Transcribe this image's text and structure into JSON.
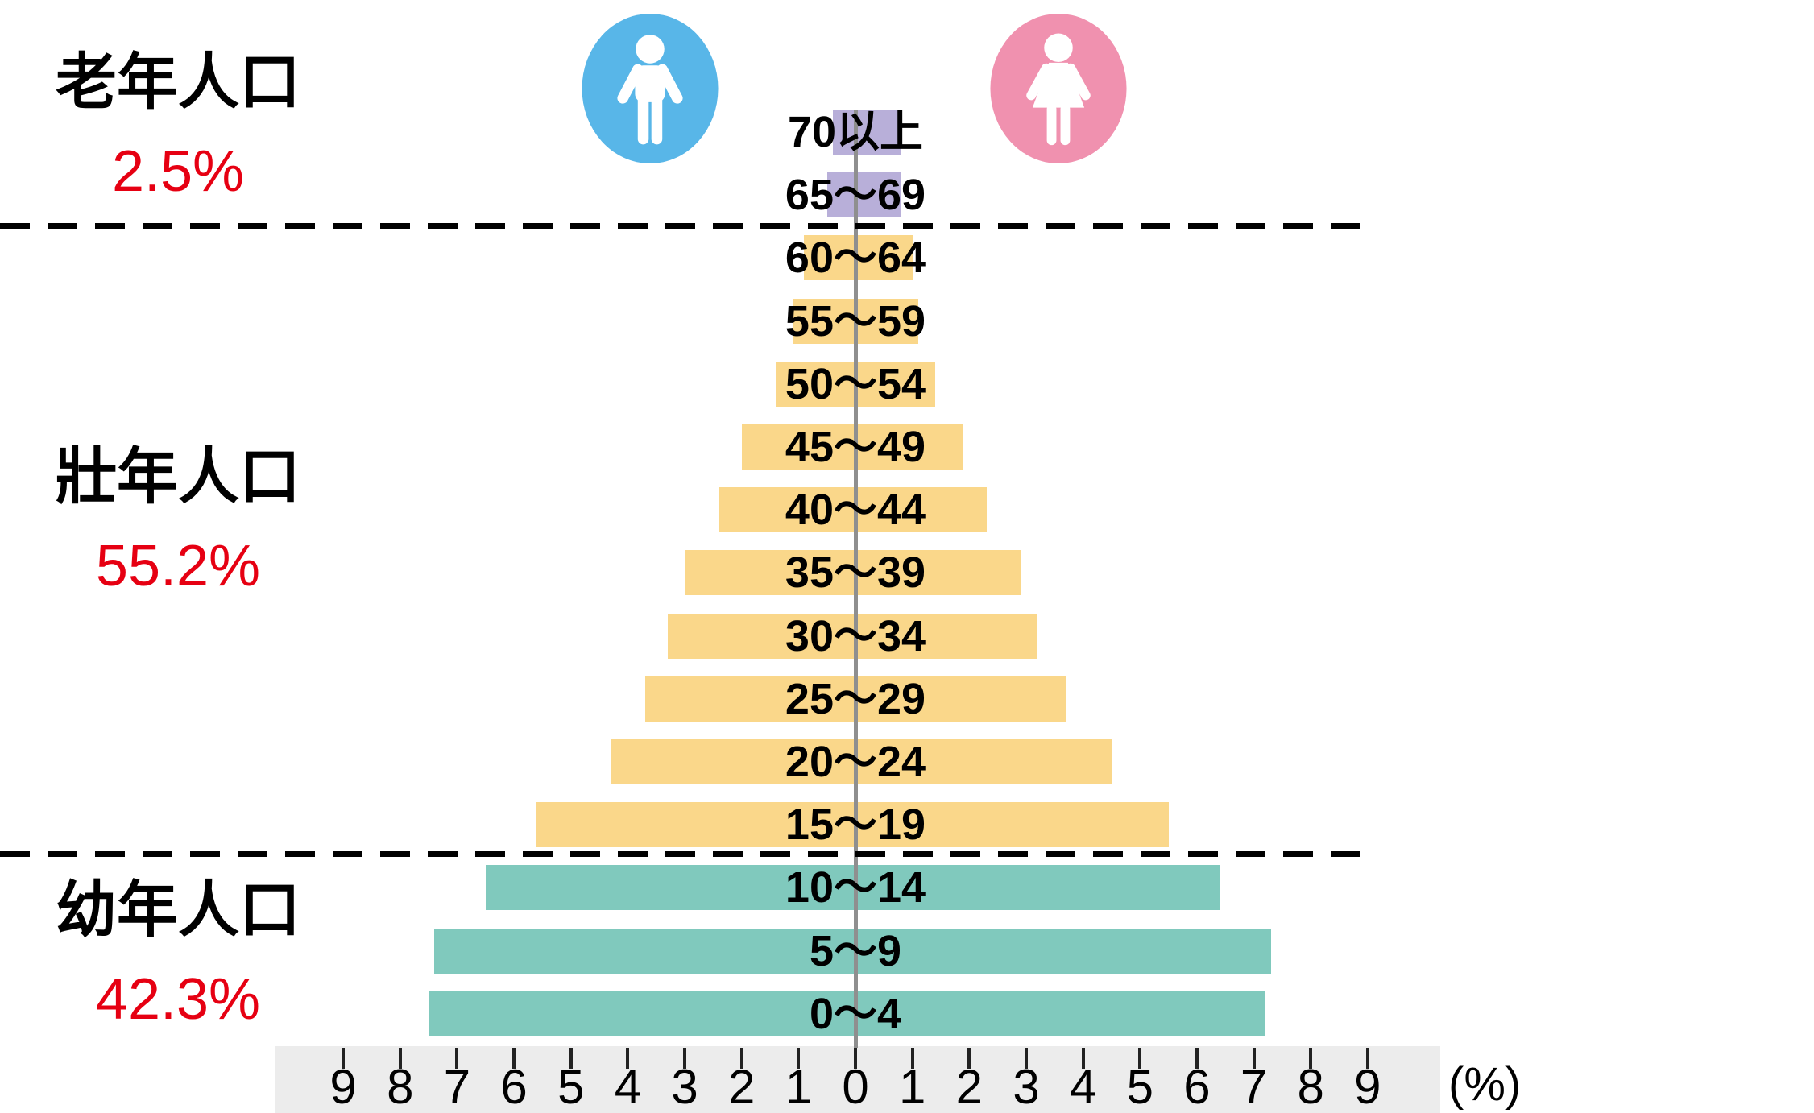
{
  "left_panel": {
    "groups": [
      {
        "name": "老年人口",
        "percent": "2.5%"
      },
      {
        "name": "壯年人口",
        "percent": "55.2%"
      },
      {
        "name": "幼年人口",
        "percent": "42.3%"
      }
    ]
  },
  "icons": {
    "male": "male-icon",
    "female": "female-icon"
  },
  "colors": {
    "elderly_bar": "#B8AFD9",
    "working_bar": "#FAD78A",
    "child_bar": "#80C9BD",
    "male_icon_bg": "#58B6E8",
    "female_icon_bg": "#F091AF",
    "percent_text": "#E60012",
    "axis_strip_bg": "#ECECEC",
    "center_line": "#8F8F8F",
    "tick_color": "#222222",
    "dash_color": "#000000"
  },
  "chart_data": {
    "type": "bar",
    "subtype": "population_pyramid",
    "orientation": "horizontal",
    "unit": "%",
    "title": "",
    "categories": [
      "70以上",
      "65〜69",
      "60〜64",
      "55〜59",
      "50〜54",
      "45〜49",
      "40〜44",
      "35〜39",
      "30〜34",
      "25〜29",
      "20〜24",
      "15〜19",
      "10〜14",
      "5〜9",
      "0〜4"
    ],
    "category_groups": [
      "elderly",
      "elderly",
      "working",
      "working",
      "working",
      "working",
      "working",
      "working",
      "working",
      "working",
      "working",
      "working",
      "child",
      "child",
      "child"
    ],
    "series": [
      {
        "name": "male",
        "side": "left",
        "values": [
          0.4,
          0.5,
          0.9,
          1.1,
          1.4,
          2.0,
          2.4,
          3.0,
          3.3,
          3.7,
          4.3,
          5.6,
          6.5,
          7.4,
          7.5
        ]
      },
      {
        "name": "female",
        "side": "right",
        "values": [
          0.8,
          0.8,
          1.0,
          1.1,
          1.4,
          1.9,
          2.3,
          2.9,
          3.2,
          3.7,
          4.5,
          5.5,
          6.4,
          7.3,
          7.2
        ]
      }
    ],
    "group_totals": {
      "elderly": "2.5%",
      "working": "55.2%",
      "child": "42.3%"
    },
    "x_axis": {
      "tick_labels": [
        "9",
        "8",
        "7",
        "6",
        "5",
        "4",
        "3",
        "2",
        "1",
        "0",
        "1",
        "2",
        "3",
        "4",
        "5",
        "6",
        "7",
        "8",
        "9"
      ],
      "max": 9,
      "unit_label": "(%)",
      "grid": false
    },
    "legend": {
      "position": "top",
      "entries": [
        "male",
        "female"
      ]
    }
  }
}
